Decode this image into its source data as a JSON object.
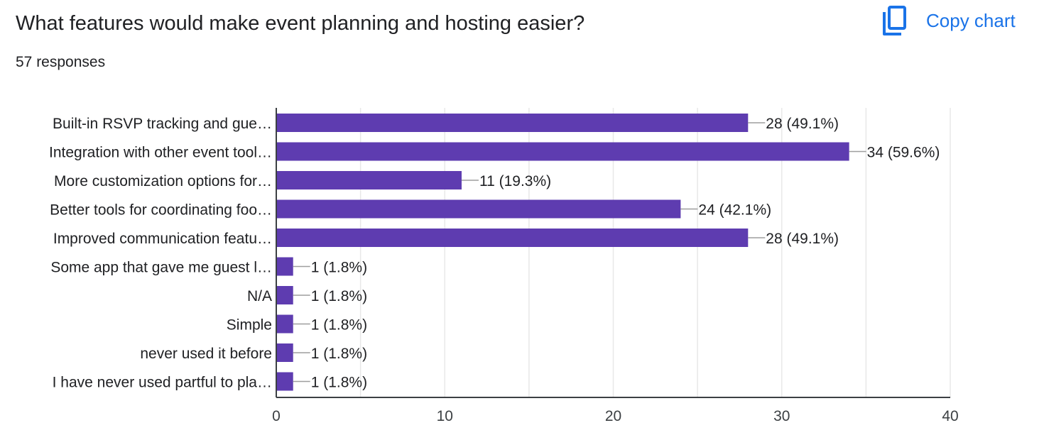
{
  "header": {
    "question_title": "What features would make event planning and hosting easier?",
    "response_count": "57 responses",
    "copy_chart_label": "Copy chart"
  },
  "colors": {
    "bar": "#5e3cb0",
    "grid": "#e8e8e8",
    "axis": "#3c4043",
    "link": "#1a73e8"
  },
  "chart_data": {
    "type": "bar",
    "orientation": "horizontal",
    "categories": [
      "Built-in RSVP tracking and gue…",
      "Integration with other event tool…",
      "More customization options for…",
      "Better tools for coordinating foo…",
      "Improved communication featu…",
      "Some app that gave me guest l…",
      "N/A",
      "Simple",
      "never used it before",
      "I have never used partful to pla…"
    ],
    "values": [
      28,
      34,
      11,
      24,
      28,
      1,
      1,
      1,
      1,
      1
    ],
    "data_labels": [
      "28 (49.1%)",
      "34 (59.6%)",
      "11 (19.3%)",
      "24 (42.1%)",
      "28 (49.1%)",
      "1 (1.8%)",
      "1 (1.8%)",
      "1 (1.8%)",
      "1 (1.8%)",
      "1 (1.8%)"
    ],
    "xlim": [
      0,
      40
    ],
    "xticks": [
      0,
      10,
      20,
      30,
      40
    ],
    "minor_gridlines": [
      5,
      15,
      25,
      35
    ],
    "grid": true,
    "legend": "none"
  }
}
